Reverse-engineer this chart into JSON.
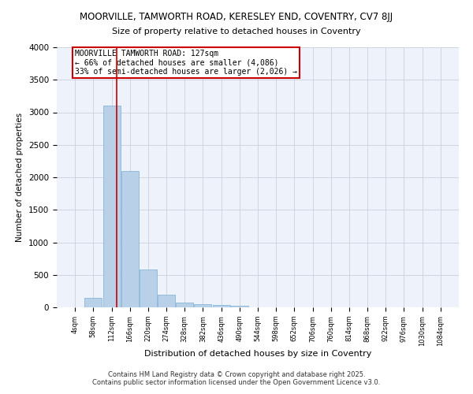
{
  "title": "MOORVILLE, TAMWORTH ROAD, KERESLEY END, COVENTRY, CV7 8JJ",
  "subtitle": "Size of property relative to detached houses in Coventry",
  "xlabel": "Distribution of detached houses by size in Coventry",
  "ylabel": "Number of detached properties",
  "bar_color": "#b8d0e8",
  "bar_edge_color": "#7aafd4",
  "background_color": "#eef2fb",
  "grid_color": "#c8c8d8",
  "annotation_text": "MOORVILLE TAMWORTH ROAD: 127sqm\n← 66% of detached houses are smaller (4,086)\n33% of semi-detached houses are larger (2,026) →",
  "vline_color": "#cc0000",
  "annotation_box_color": "#cc0000",
  "bins": [
    4,
    58,
    112,
    166,
    220,
    274,
    328,
    382,
    436,
    490,
    544,
    598,
    652,
    706,
    760,
    814,
    868,
    922,
    976,
    1030,
    1084
  ],
  "counts": [
    0,
    150,
    3100,
    2100,
    580,
    200,
    70,
    50,
    40,
    20,
    0,
    0,
    0,
    0,
    0,
    0,
    0,
    0,
    0,
    0,
    0
  ],
  "ylim": [
    0,
    4000
  ],
  "yticks": [
    0,
    500,
    1000,
    1500,
    2000,
    2500,
    3000,
    3500,
    4000
  ],
  "vline_x": 127,
  "footer_line1": "Contains HM Land Registry data © Crown copyright and database right 2025.",
  "footer_line2": "Contains public sector information licensed under the Open Government Licence v3.0."
}
